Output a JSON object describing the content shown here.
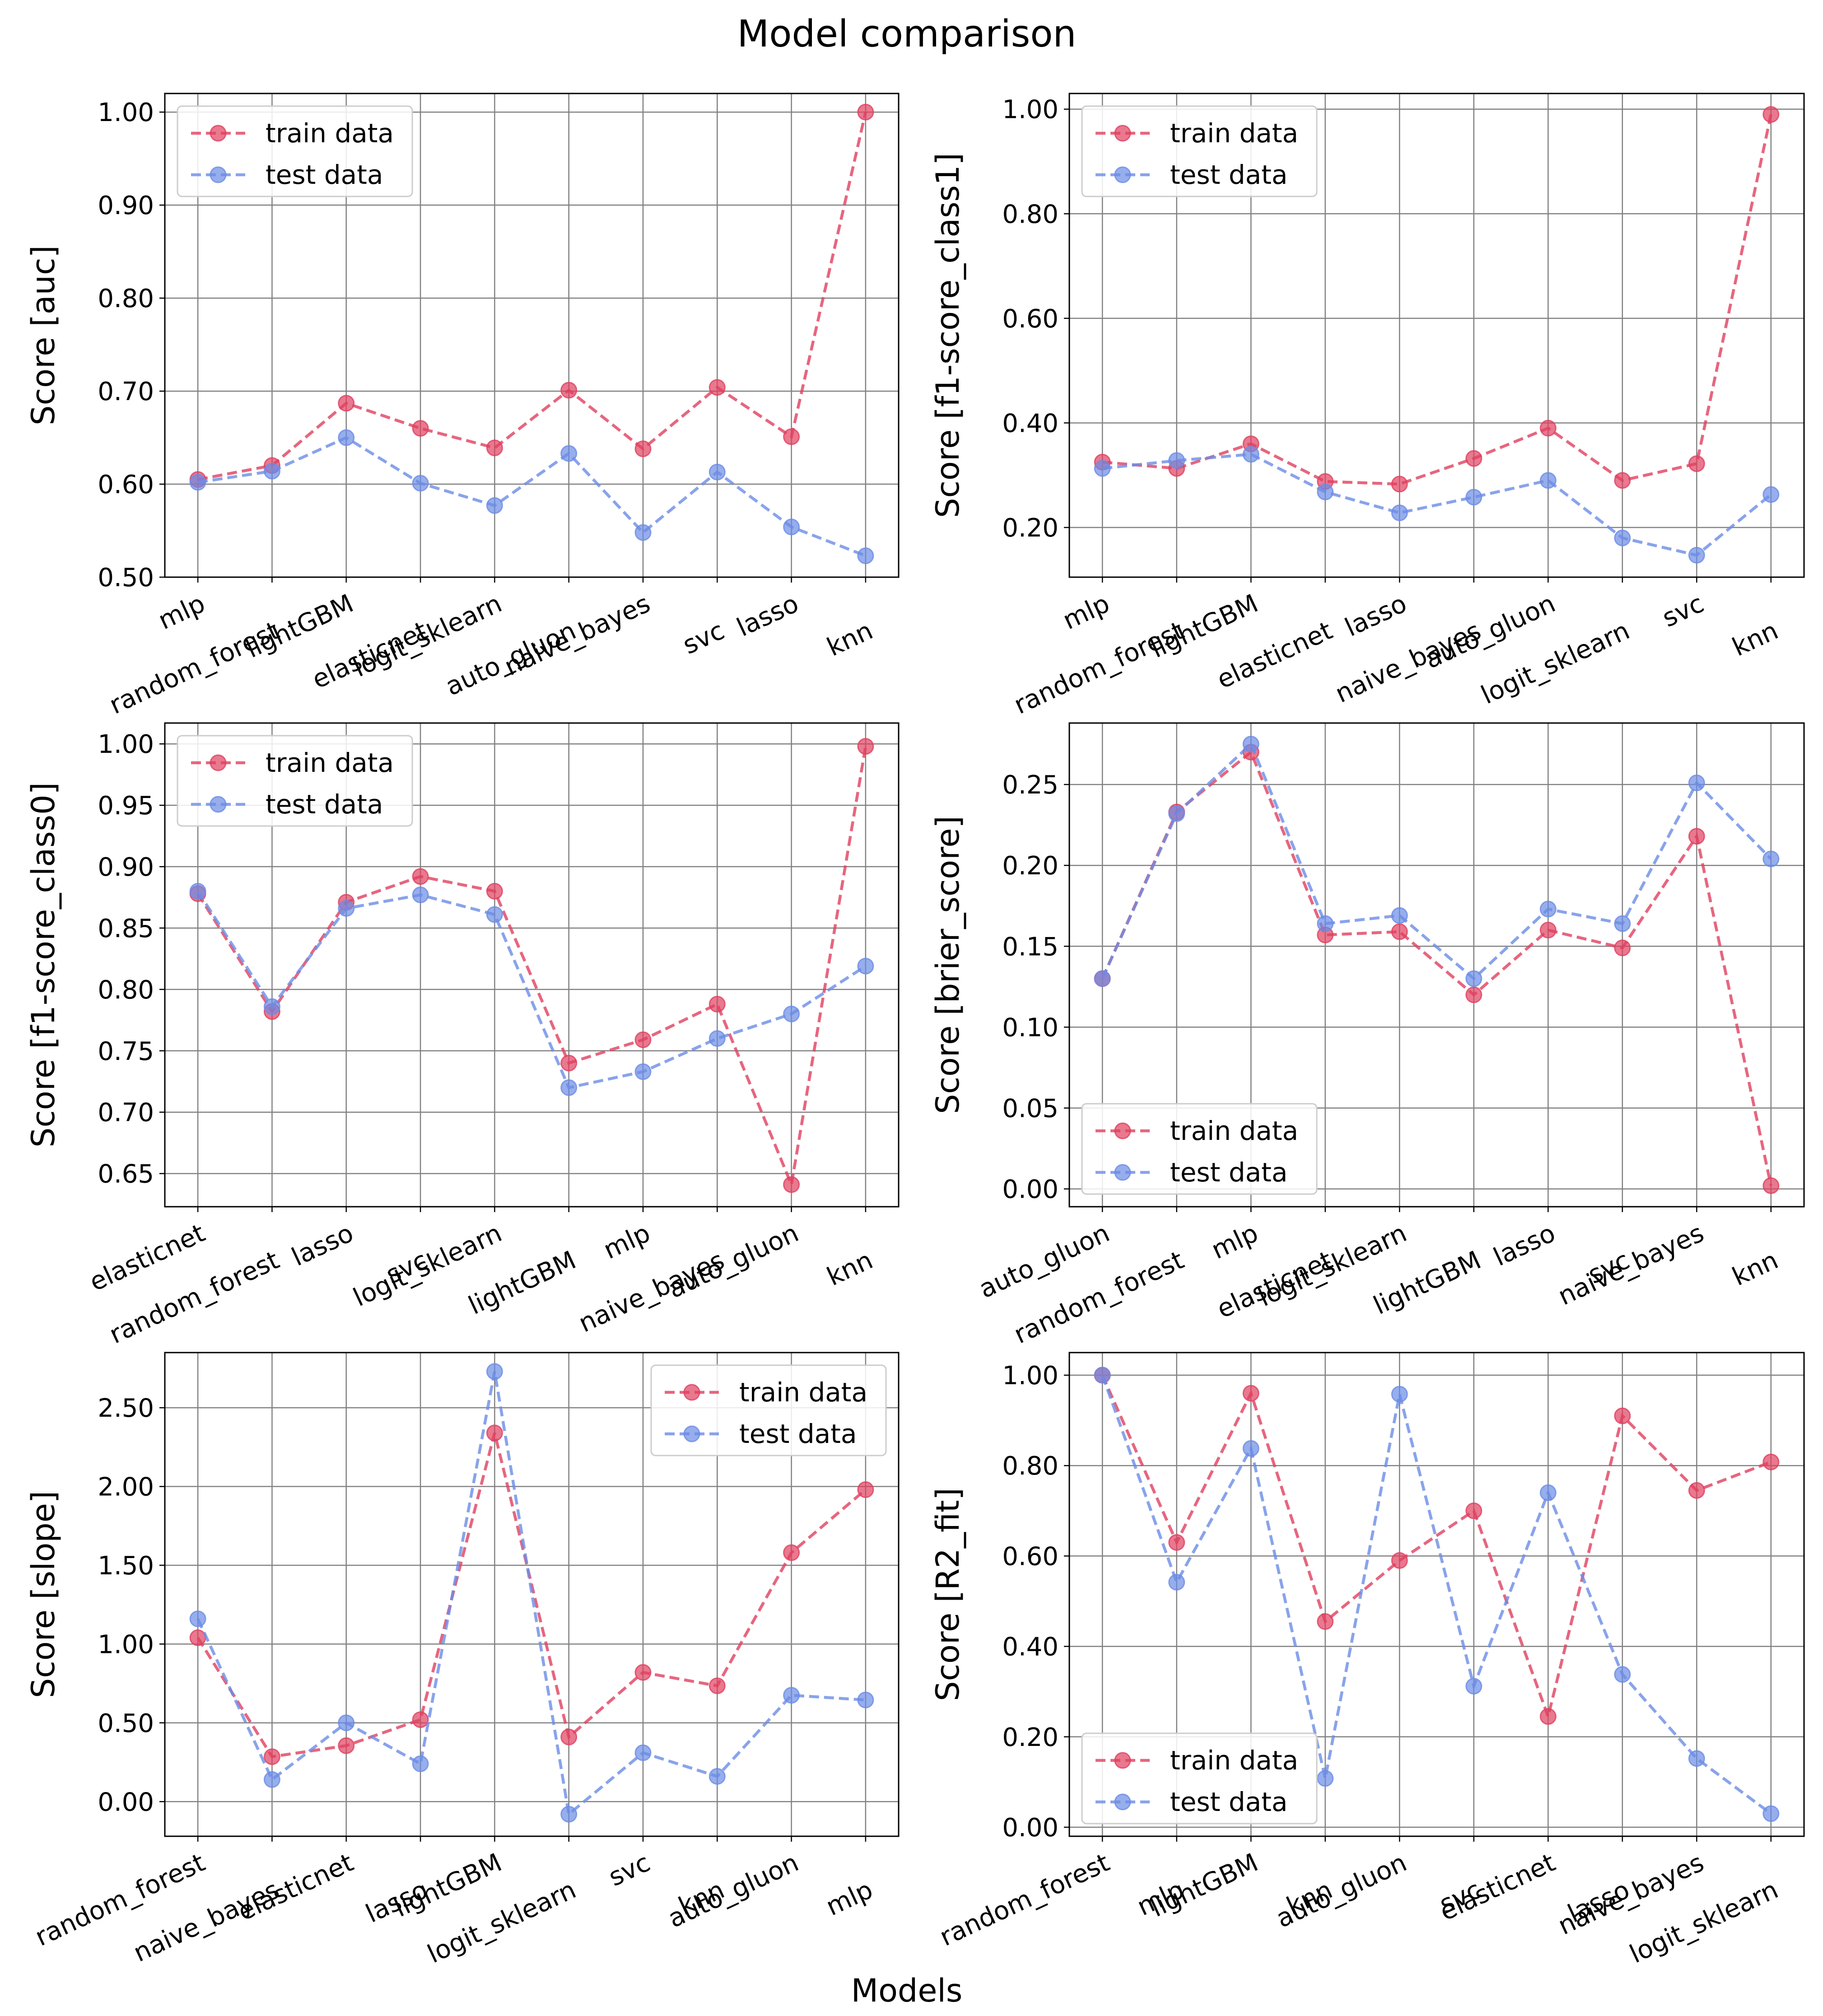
{
  "suptitle": "Model comparison",
  "global_xlabel": "Models",
  "colors": {
    "train": "#e0405f",
    "test": "#6b8ce6",
    "grid": "#808080"
  },
  "legend": {
    "train": "train data",
    "test": "test data"
  },
  "chart_data": [
    {
      "type": "line",
      "ylabel": "Score [auc]",
      "ylim": [
        0.5,
        1.02
      ],
      "yticks": [
        0.5,
        0.6,
        0.7,
        0.8,
        0.9,
        1.0
      ],
      "ytick_labels": [
        "0.50",
        "0.60",
        "0.70",
        "0.80",
        "0.90",
        "1.00"
      ],
      "legend_loc": "upper-left",
      "categories": [
        "mlp",
        "random_forest",
        "lightGBM",
        "elasticnet",
        "logit_sklearn",
        "auto_gluon",
        "naive_bayes",
        "svc",
        "lasso",
        "knn"
      ],
      "series": [
        {
          "name": "train data",
          "values": [
            0.605,
            0.62,
            0.687,
            0.66,
            0.639,
            0.701,
            0.638,
            0.704,
            0.651,
            1.0
          ]
        },
        {
          "name": "test data",
          "values": [
            0.602,
            0.614,
            0.65,
            0.601,
            0.577,
            0.633,
            0.548,
            0.613,
            0.554,
            0.523
          ]
        }
      ]
    },
    {
      "type": "line",
      "ylabel": "Score [f1-score_class1]",
      "ylim": [
        0.105,
        1.03
      ],
      "yticks": [
        0.2,
        0.4,
        0.6,
        0.8,
        1.0
      ],
      "ytick_labels": [
        "0.20",
        "0.40",
        "0.60",
        "0.80",
        "1.00"
      ],
      "legend_loc": "upper-left",
      "categories": [
        "mlp",
        "random_forest",
        "lightGBM",
        "elasticnet",
        "lasso",
        "naive_bayes",
        "auto_gluon",
        "logit_sklearn",
        "svc",
        "knn"
      ],
      "series": [
        {
          "name": "train data",
          "values": [
            0.325,
            0.313,
            0.36,
            0.288,
            0.283,
            0.332,
            0.39,
            0.29,
            0.322,
            0.99
          ]
        },
        {
          "name": "test data",
          "values": [
            0.313,
            0.328,
            0.34,
            0.268,
            0.228,
            0.258,
            0.29,
            0.18,
            0.147,
            0.263
          ]
        }
      ]
    },
    {
      "type": "line",
      "ylabel": "Score [f1-score_class0]",
      "ylim": [
        0.623,
        1.017
      ],
      "yticks": [
        0.65,
        0.7,
        0.75,
        0.8,
        0.85,
        0.9,
        0.95,
        1.0
      ],
      "ytick_labels": [
        "0.65",
        "0.70",
        "0.75",
        "0.80",
        "0.85",
        "0.90",
        "0.95",
        "1.00"
      ],
      "legend_loc": "upper-left",
      "categories": [
        "elasticnet",
        "random_forest",
        "lasso",
        "svc",
        "logit_sklearn",
        "lightGBM",
        "mlp",
        "naive_bayes",
        "auto_gluon",
        "knn"
      ],
      "series": [
        {
          "name": "train data",
          "values": [
            0.878,
            0.782,
            0.871,
            0.892,
            0.88,
            0.74,
            0.759,
            0.788,
            0.641,
            0.998
          ]
        },
        {
          "name": "test data",
          "values": [
            0.88,
            0.786,
            0.866,
            0.877,
            0.861,
            0.72,
            0.733,
            0.76,
            0.78,
            0.819
          ]
        }
      ]
    },
    {
      "type": "line",
      "ylabel": "Score [brier_score]",
      "ylim": [
        -0.011,
        0.288
      ],
      "yticks": [
        0.0,
        0.05,
        0.1,
        0.15,
        0.2,
        0.25
      ],
      "ytick_labels": [
        "0.00",
        "0.05",
        "0.10",
        "0.15",
        "0.20",
        "0.25"
      ],
      "legend_loc": "lower-left",
      "categories": [
        "auto_gluon",
        "random_forest",
        "mlp",
        "elasticnet",
        "logit_sklearn",
        "lightGBM",
        "lasso",
        "svc",
        "naive_bayes",
        "knn"
      ],
      "series": [
        {
          "name": "train data",
          "values": [
            0.13,
            0.233,
            0.27,
            0.157,
            0.159,
            0.12,
            0.16,
            0.149,
            0.218,
            0.002
          ]
        },
        {
          "name": "test data",
          "values": [
            0.13,
            0.232,
            0.275,
            0.164,
            0.169,
            0.13,
            0.173,
            0.164,
            0.251,
            0.204
          ]
        }
      ]
    },
    {
      "type": "line",
      "ylabel": "Score [slope]",
      "ylim": [
        -0.22,
        2.85
      ],
      "yticks": [
        0.0,
        0.5,
        1.0,
        1.5,
        2.0,
        2.5
      ],
      "ytick_labels": [
        "0.00",
        "0.50",
        "1.00",
        "1.50",
        "2.00",
        "2.50"
      ],
      "legend_loc": "upper-right",
      "categories": [
        "random_forest",
        "naive_bayes",
        "elasticnet",
        "lasso",
        "lightGBM",
        "logit_sklearn",
        "svc",
        "knn",
        "auto_gluon",
        "mlp"
      ],
      "series": [
        {
          "name": "train data",
          "values": [
            1.04,
            0.285,
            0.355,
            0.52,
            2.34,
            0.41,
            0.82,
            0.735,
            1.58,
            1.98
          ]
        },
        {
          "name": "test data",
          "values": [
            1.16,
            0.14,
            0.5,
            0.24,
            2.73,
            -0.08,
            0.31,
            0.16,
            0.675,
            0.645
          ]
        }
      ]
    },
    {
      "type": "line",
      "ylabel": "Score [R2_fit]",
      "ylim": [
        -0.02,
        1.05
      ],
      "yticks": [
        0.0,
        0.2,
        0.4,
        0.6,
        0.8,
        1.0
      ],
      "ytick_labels": [
        "0.00",
        "0.20",
        "0.40",
        "0.60",
        "0.80",
        "1.00"
      ],
      "legend_loc": "lower-left",
      "categories": [
        "random_forest",
        "mlp",
        "lightGBM",
        "knn",
        "auto_gluon",
        "svc",
        "elasticnet",
        "lasso",
        "naive_bayes",
        "logit_sklearn"
      ],
      "series": [
        {
          "name": "train data",
          "values": [
            1.0,
            0.63,
            0.96,
            0.455,
            0.59,
            0.7,
            0.245,
            0.91,
            0.745,
            0.808
          ]
        },
        {
          "name": "test data",
          "values": [
            1.0,
            0.542,
            0.838,
            0.108,
            0.958,
            0.312,
            0.74,
            0.338,
            0.152,
            0.03
          ]
        }
      ]
    }
  ]
}
